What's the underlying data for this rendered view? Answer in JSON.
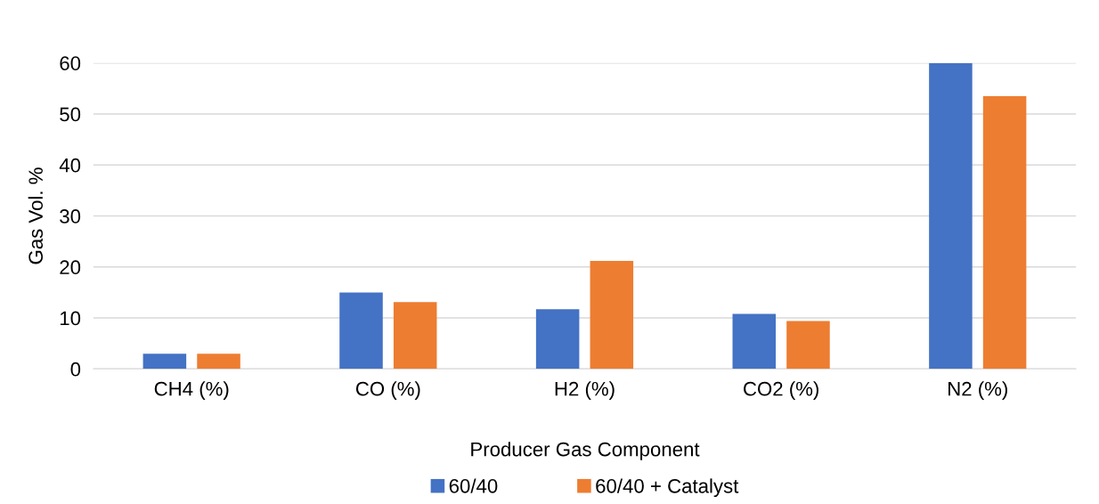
{
  "chart_data": {
    "type": "bar",
    "xlabel": "Producer Gas Component",
    "ylabel": "Gas Vol. %",
    "categories": [
      "CH4 (%)",
      "CO (%)",
      "H2 (%)",
      "CO2 (%)",
      "N2 (%)"
    ],
    "series": [
      {
        "name": "60/40",
        "color": "#4472c4",
        "values": [
          3.0,
          15.0,
          11.7,
          10.8,
          60.0
        ]
      },
      {
        "name": "60/40 + Catalyst",
        "color": "#ed7d31",
        "values": [
          3.0,
          13.1,
          21.2,
          9.4,
          53.5
        ]
      }
    ],
    "ylim": [
      0,
      60
    ],
    "yticks": [
      0,
      10,
      20,
      30,
      40,
      50,
      60
    ],
    "grid": "y",
    "legend": "bottom"
  }
}
